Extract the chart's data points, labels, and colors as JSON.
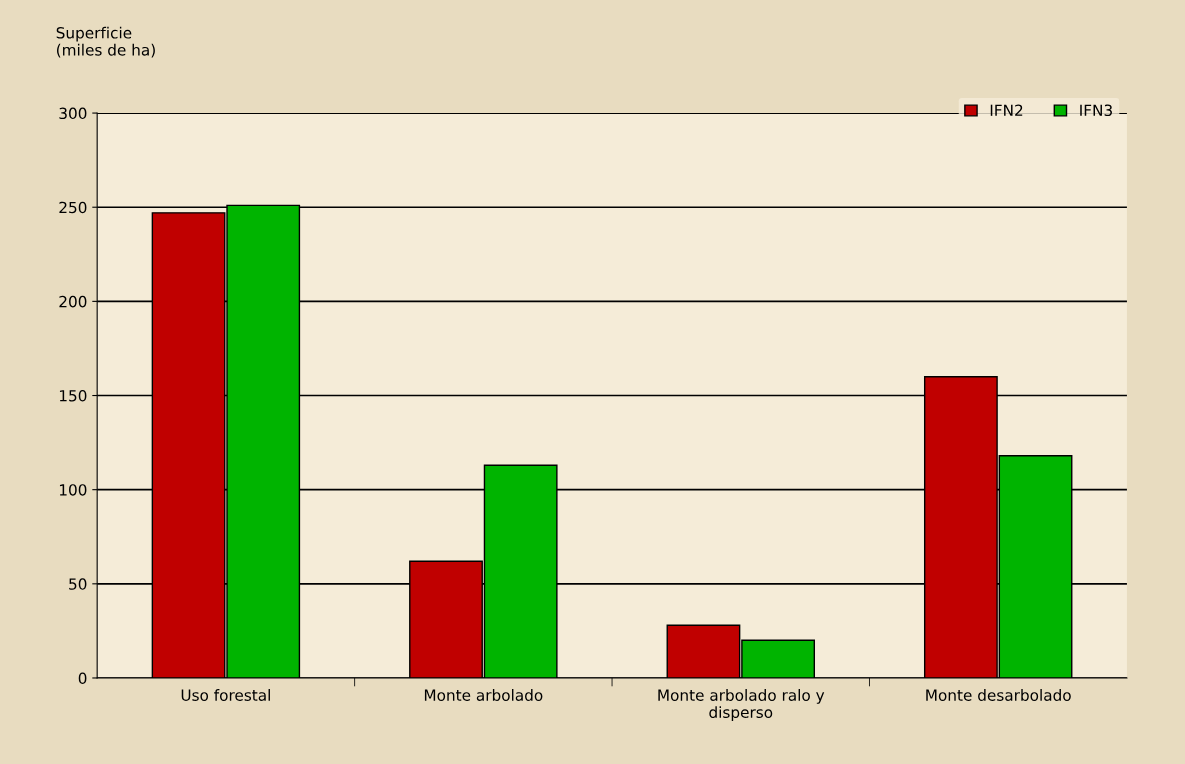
{
  "chart_data": {
    "type": "bar",
    "ylabel": "Superficie\n(miles de ha)",
    "categories": [
      "Uso forestal",
      "Monte arbolado",
      "Monte arbolado ralo y\ndisperso",
      "Monte desarbolado"
    ],
    "series": [
      {
        "name": "IFN2",
        "color": "#c00000",
        "values": [
          247,
          62,
          28,
          160
        ]
      },
      {
        "name": "IFN3",
        "color": "#00b400",
        "values": [
          251,
          113,
          20,
          118
        ]
      }
    ],
    "ylim": [
      0,
      300
    ],
    "yticks": [
      0,
      50,
      100,
      150,
      200,
      250,
      300
    ],
    "grid": "y",
    "legend": "top right"
  }
}
